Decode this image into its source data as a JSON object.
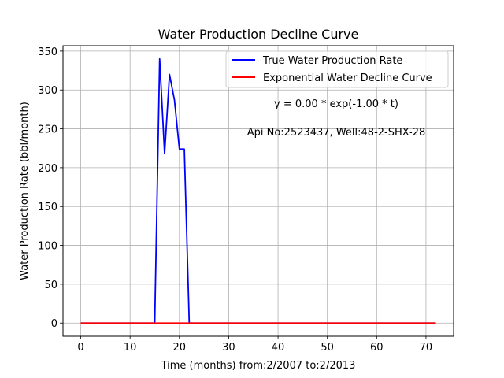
{
  "chart_data": {
    "type": "line",
    "title": "Water Production Decline Curve",
    "xlabel": "Time (months) from:2/2007 to:2/2013",
    "ylabel": "Water Production Rate (bbl/month)",
    "xlim": [
      -3.6,
      75.6
    ],
    "ylim": [
      -17,
      357
    ],
    "xticks": [
      0,
      10,
      20,
      30,
      40,
      50,
      60,
      70
    ],
    "yticks": [
      0,
      50,
      100,
      150,
      200,
      250,
      300,
      350
    ],
    "grid": true,
    "legend_position": "top-right",
    "series": [
      {
        "name": "True Water Production Rate",
        "color": "#0000ff",
        "x": [
          0,
          1,
          2,
          3,
          4,
          5,
          6,
          7,
          8,
          9,
          10,
          11,
          12,
          13,
          14,
          15,
          16,
          17,
          18,
          19,
          20,
          21,
          22,
          23,
          24,
          25,
          26,
          27,
          28,
          29,
          30,
          31,
          32,
          33,
          34,
          35,
          36,
          37,
          38,
          39,
          40,
          41,
          42,
          43,
          44,
          45,
          46,
          47,
          48,
          49,
          50,
          51,
          52,
          53,
          54,
          55,
          56,
          57,
          58,
          59,
          60,
          61,
          62,
          63,
          64,
          65,
          66,
          67,
          68,
          69,
          70,
          71,
          72
        ],
        "y": [
          0,
          0,
          0,
          0,
          0,
          0,
          0,
          0,
          0,
          0,
          0,
          0,
          0,
          0,
          0,
          0,
          340,
          218,
          320,
          287,
          224,
          224,
          0,
          0,
          0,
          0,
          0,
          0,
          0,
          0,
          0,
          0,
          0,
          0,
          0,
          0,
          0,
          0,
          0,
          0,
          0,
          0,
          0,
          0,
          0,
          0,
          0,
          0,
          0,
          0,
          0,
          0,
          0,
          0,
          0,
          0,
          0,
          0,
          0,
          0,
          0,
          0,
          0,
          0,
          0,
          0,
          0,
          0,
          0,
          0,
          0,
          0,
          0
        ]
      },
      {
        "name": "Exponential Water Decline Curve",
        "color": "#ff0000",
        "x": [
          0,
          72
        ],
        "y": [
          0,
          0
        ]
      }
    ],
    "annotations": [
      {
        "text": "y = 0.00 * exp(-1.00 * t)"
      },
      {
        "text": "Api No:2523437, Well:48-2-SHX-28"
      }
    ]
  }
}
